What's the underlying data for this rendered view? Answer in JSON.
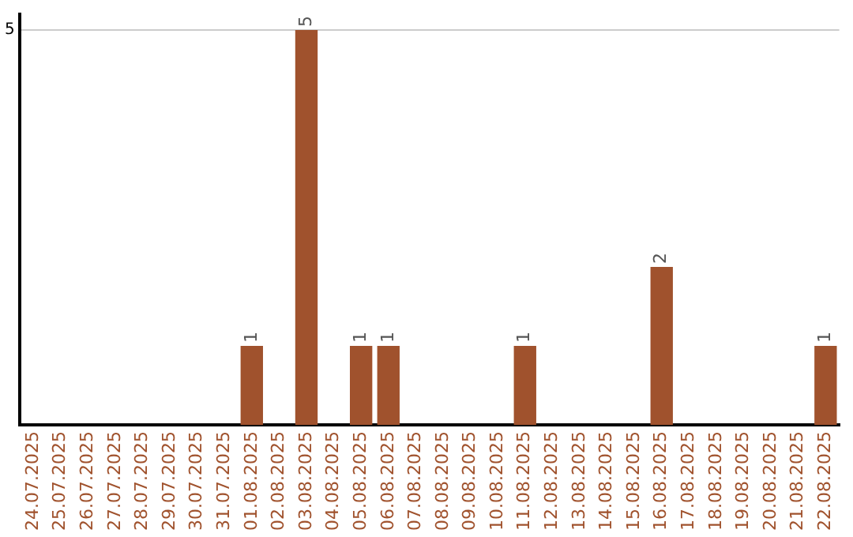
{
  "chart_data": {
    "type": "bar",
    "categories": [
      "24.07.2025",
      "25.07.2025",
      "26.07.2025",
      "27.07.2025",
      "28.07.2025",
      "29.07.2025",
      "30.07.2025",
      "31.07.2025",
      "01.08.2025",
      "02.08.2025",
      "03.08.2025",
      "04.08.2025",
      "05.08.2025",
      "06.08.2025",
      "07.08.2025",
      "08.08.2025",
      "09.08.2025",
      "10.08.2025",
      "11.08.2025",
      "12.08.2025",
      "13.08.2025",
      "14.08.2025",
      "15.08.2025",
      "16.08.2025",
      "17.08.2025",
      "18.08.2025",
      "19.08.2025",
      "20.08.2025",
      "21.08.2025",
      "22.08.2025"
    ],
    "values": [
      0,
      0,
      0,
      0,
      0,
      0,
      0,
      0,
      1,
      0,
      5,
      0,
      1,
      1,
      0,
      0,
      0,
      0,
      1,
      0,
      0,
      0,
      0,
      2,
      0,
      0,
      0,
      0,
      0,
      1
    ],
    "color": "#a0522d",
    "value_labels": [
      null,
      null,
      null,
      null,
      null,
      null,
      null,
      null,
      "1",
      null,
      "5",
      null,
      "1",
      "1",
      null,
      null,
      null,
      null,
      "1",
      null,
      null,
      null,
      null,
      "2",
      null,
      null,
      null,
      null,
      null,
      "1"
    ],
    "ylim": [
      0,
      5.2
    ],
    "yticks": [
      5
    ],
    "grid": "y",
    "legend": false
  }
}
